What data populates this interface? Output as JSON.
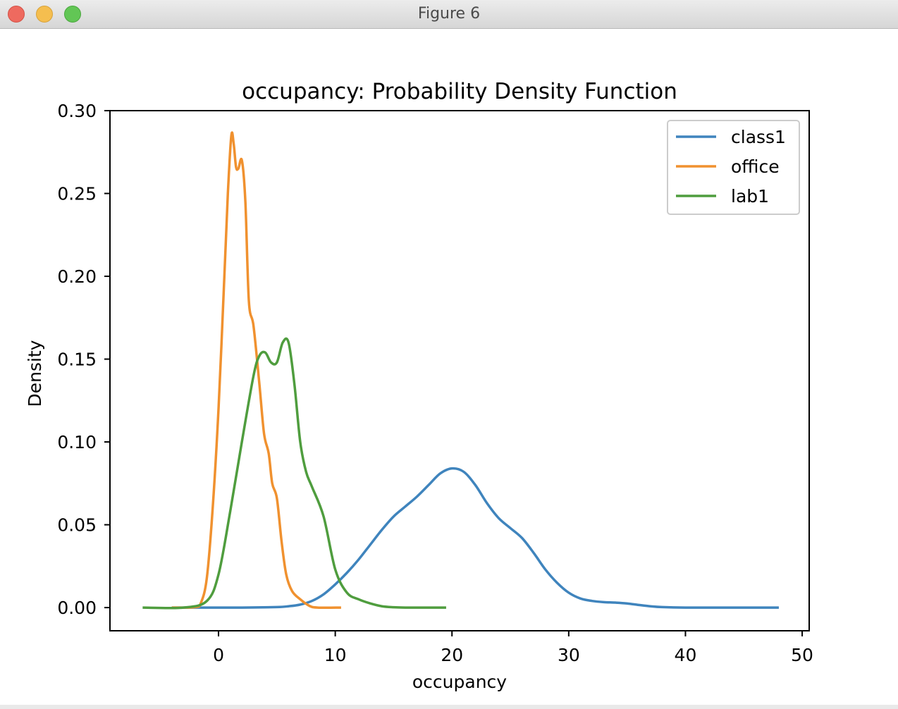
{
  "window": {
    "title": "Figure 6"
  },
  "chart_data": {
    "type": "line",
    "title": "occupancy: Probability Density Function",
    "xlabel": "occupancy",
    "ylabel": "Density",
    "xlim": [
      -9.3,
      50.6
    ],
    "ylim": [
      -0.014,
      0.3
    ],
    "xticks": [
      0,
      10,
      20,
      30,
      40,
      50
    ],
    "xtick_labels": [
      "0",
      "10",
      "20",
      "30",
      "40",
      "50"
    ],
    "yticks": [
      0.0,
      0.05,
      0.1,
      0.15,
      0.2,
      0.25,
      0.3
    ],
    "ytick_labels": [
      "0.00",
      "0.05",
      "0.10",
      "0.15",
      "0.20",
      "0.25",
      "0.30"
    ],
    "grid": false,
    "legend": "top-right",
    "series": [
      {
        "name": "class1",
        "color": "#3f84bd",
        "x": [
          -4,
          2,
          5,
          6,
          7,
          8,
          9,
          10,
          11,
          12,
          13,
          14,
          15,
          16,
          17,
          18,
          19,
          20,
          21,
          22,
          23,
          24,
          25,
          26,
          27,
          28,
          29,
          30,
          31,
          32,
          33,
          34,
          35,
          36,
          37,
          38,
          40,
          44,
          48
        ],
        "y": [
          0.0,
          0.0,
          0.0003,
          0.0008,
          0.0018,
          0.004,
          0.008,
          0.014,
          0.021,
          0.029,
          0.038,
          0.047,
          0.055,
          0.061,
          0.067,
          0.074,
          0.081,
          0.084,
          0.082,
          0.074,
          0.063,
          0.054,
          0.048,
          0.042,
          0.033,
          0.023,
          0.015,
          0.009,
          0.0055,
          0.004,
          0.0033,
          0.003,
          0.0025,
          0.0016,
          0.0008,
          0.0003,
          0.0,
          0.0,
          0.0
        ]
      },
      {
        "name": "office",
        "color": "#f0912f",
        "x": [
          -4,
          -2,
          -1.5,
          -1,
          -0.5,
          0,
          0.5,
          0.8,
          1.1,
          1.3,
          1.5,
          1.7,
          2.0,
          2.3,
          2.6,
          3.0,
          3.5,
          3.9,
          4.3,
          4.6,
          5.0,
          5.4,
          5.8,
          6.3,
          7.0,
          7.8,
          8.5,
          10.5
        ],
        "y": [
          0.0,
          0.0003,
          0.003,
          0.018,
          0.06,
          0.12,
          0.2,
          0.25,
          0.285,
          0.28,
          0.266,
          0.265,
          0.27,
          0.245,
          0.185,
          0.17,
          0.135,
          0.105,
          0.093,
          0.075,
          0.066,
          0.04,
          0.02,
          0.01,
          0.005,
          0.001,
          0.0,
          0.0
        ]
      },
      {
        "name": "lab1",
        "color": "#4f9d3e",
        "x": [
          -6.5,
          -3,
          -1,
          0,
          1,
          2,
          3,
          3.5,
          4,
          4.5,
          5,
          5.5,
          6,
          6.5,
          7,
          7.5,
          8,
          9,
          10,
          11,
          12,
          13,
          14,
          15,
          16,
          17,
          19.5
        ],
        "y": [
          0.0,
          0.0,
          0.004,
          0.02,
          0.058,
          0.1,
          0.14,
          0.152,
          0.154,
          0.148,
          0.148,
          0.16,
          0.16,
          0.135,
          0.1,
          0.082,
          0.073,
          0.055,
          0.023,
          0.009,
          0.005,
          0.0025,
          0.0008,
          0.0002,
          0.0,
          0.0,
          0.0
        ]
      }
    ]
  }
}
